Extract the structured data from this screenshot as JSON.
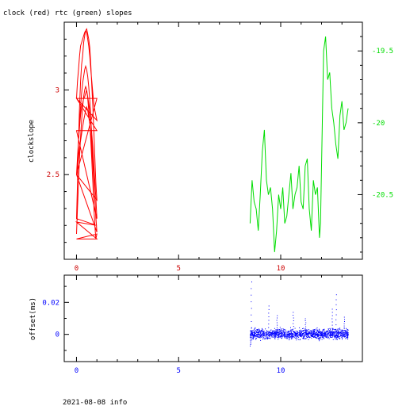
{
  "title": "clock (red) rtc (green) slopes",
  "footer": "2021-08-08 info",
  "colors": {
    "clock": "#ff0000",
    "rtc": "#00dd00",
    "offset": "#0000ff",
    "frame": "#000000"
  },
  "chart_data": [
    {
      "type": "line",
      "title": "clock (red) rtc (green) slopes",
      "xlabel": "",
      "ylabel": "clockslope",
      "xlim": [
        -0.6,
        14
      ],
      "xticks": [
        "0",
        "5",
        "10"
      ],
      "y_left": {
        "label": "clockslope",
        "color": "#cc0000",
        "lim": [
          2.0,
          3.4
        ],
        "ticks": [
          "2.5",
          "3"
        ]
      },
      "y_right": {
        "label": "",
        "color": "#00dd00",
        "lim": [
          -20.95,
          -19.3
        ],
        "ticks": [
          "-20.5",
          "-20",
          "-19.5"
        ]
      },
      "series": [
        {
          "axis": "left",
          "color": "#ff0000",
          "x": [
            0.0,
            0.05,
            0.1,
            0.15,
            0.2,
            0.25,
            0.3,
            0.35,
            0.4,
            0.45,
            0.5,
            0.55,
            0.6,
            0.65,
            0.7,
            0.75,
            0.8,
            0.85,
            0.9,
            0.95,
            1.0,
            0.0,
            1.0,
            0.0,
            1.0,
            0.0,
            0.05,
            0.1,
            0.15,
            0.2,
            0.25,
            0.3,
            0.35,
            0.4,
            0.45,
            0.5,
            0.55,
            0.6,
            0.65,
            0.7,
            0.75,
            0.8,
            0.85,
            0.9,
            0.95,
            1.0,
            0.0,
            0.05,
            0.1,
            0.15,
            0.2,
            0.25,
            0.3,
            0.35,
            0.4,
            0.45,
            0.5,
            0.55,
            0.6,
            0.65,
            0.7,
            0.75,
            0.8,
            0.85,
            0.9,
            0.95,
            1.0,
            0.0,
            1.0,
            0.0,
            0.05,
            0.1,
            0.15,
            0.2,
            0.25,
            0.3,
            0.35,
            0.4,
            0.45,
            0.5,
            0.55,
            0.6,
            0.65,
            0.7,
            0.75,
            0.8,
            0.85,
            0.9,
            0.95,
            1.0,
            0.0,
            1.0,
            0.0,
            0.05,
            0.1,
            0.15,
            0.2,
            0.25,
            0.3,
            0.35,
            0.4,
            0.45,
            0.5,
            0.55,
            0.6,
            0.65,
            0.7,
            0.75,
            0.8,
            0.85,
            0.9,
            0.95,
            1.0,
            0.0,
            0.05,
            0.1,
            0.15,
            0.2,
            0.25,
            0.3,
            0.35,
            0.4,
            0.45,
            0.5,
            0.55,
            0.6,
            0.65,
            0.7,
            0.75,
            0.8,
            0.85,
            0.9,
            0.95,
            1.0
          ],
          "y": [
            2.15,
            2.3,
            2.45,
            2.6,
            2.72,
            2.82,
            2.9,
            2.96,
            3.0,
            3.02,
            3.0,
            2.95,
            2.88,
            2.8,
            2.7,
            2.58,
            2.45,
            2.32,
            2.2,
            2.12,
            2.15,
            2.12,
            2.12,
            2.22,
            2.2,
            2.24,
            2.45,
            2.7,
            2.9,
            3.05,
            3.15,
            3.2,
            3.28,
            3.32,
            3.35,
            3.36,
            3.33,
            3.3,
            3.25,
            3.15,
            3.02,
            2.9,
            2.76,
            2.6,
            2.45,
            2.35,
            2.5,
            2.6,
            2.7,
            2.78,
            2.85,
            2.9,
            2.92,
            2.95,
            2.96,
            2.98,
            3.0,
            2.96,
            2.92,
            2.88,
            2.82,
            2.74,
            2.66,
            2.56,
            2.46,
            2.36,
            2.24,
            2.76,
            2.76,
            2.95,
            3.05,
            3.12,
            3.2,
            3.26,
            3.28,
            3.3,
            3.32,
            3.34,
            3.35,
            3.34,
            3.3,
            3.26,
            3.2,
            3.12,
            3.05,
            2.98,
            2.92,
            2.88,
            2.85,
            2.82,
            2.95,
            2.95,
            2.5,
            2.55,
            2.6,
            2.66,
            2.7,
            2.74,
            2.78,
            2.82,
            2.85,
            2.88,
            2.9,
            2.88,
            2.84,
            2.8,
            2.74,
            2.66,
            2.56,
            2.46,
            2.36,
            2.24,
            2.16,
            2.5,
            2.6,
            2.7,
            2.8,
            2.9,
            2.98,
            3.04,
            3.08,
            3.12,
            3.14,
            3.12,
            3.08,
            3.02,
            2.94,
            2.84,
            2.72,
            2.6,
            2.48,
            2.36,
            2.25,
            2.16
          ]
        },
        {
          "axis": "right",
          "color": "#00dd00",
          "x": [
            8.5,
            8.6,
            8.7,
            8.8,
            8.9,
            9.0,
            9.1,
            9.2,
            9.3,
            9.4,
            9.5,
            9.6,
            9.7,
            9.8,
            9.9,
            10.0,
            10.1,
            10.2,
            10.3,
            10.4,
            10.5,
            10.6,
            10.7,
            10.8,
            10.9,
            11.0,
            11.1,
            11.2,
            11.3,
            11.4,
            11.5,
            11.6,
            11.7,
            11.8,
            11.9,
            11.95,
            12.0,
            12.1,
            12.2,
            12.3,
            12.4,
            12.5,
            12.6,
            12.7,
            12.8,
            12.9,
            13.0,
            13.1,
            13.2,
            13.3
          ],
          "y": [
            -20.7,
            -20.4,
            -20.55,
            -20.6,
            -20.75,
            -20.5,
            -20.2,
            -20.05,
            -20.4,
            -20.5,
            -20.45,
            -20.6,
            -20.9,
            -20.75,
            -20.5,
            -20.6,
            -20.45,
            -20.7,
            -20.65,
            -20.5,
            -20.35,
            -20.6,
            -20.5,
            -20.45,
            -20.3,
            -20.55,
            -20.6,
            -20.3,
            -20.25,
            -20.6,
            -20.75,
            -20.4,
            -20.5,
            -20.45,
            -20.8,
            -20.7,
            -20.3,
            -19.5,
            -19.4,
            -19.7,
            -19.65,
            -19.9,
            -20.0,
            -20.15,
            -20.25,
            -19.95,
            -19.85,
            -20.05,
            -20.0,
            -19.9
          ]
        }
      ]
    },
    {
      "type": "scatter",
      "title": "",
      "xlabel": "",
      "ylabel": "offset(ms)",
      "xlim": [
        -0.6,
        14
      ],
      "ylim": [
        -0.017,
        0.037
      ],
      "xticks": [
        "0",
        "5",
        "10"
      ],
      "yticks": [
        "0",
        "0.02"
      ],
      "color": "#0000ff",
      "x_range": [
        8.5,
        13.3
      ],
      "band": [
        -0.004,
        0.005
      ],
      "spikes": [
        {
          "x": 8.55,
          "y": 0.033
        },
        {
          "x": 8.5,
          "y": -0.007
        },
        {
          "x": 9.4,
          "y": 0.018
        },
        {
          "x": 9.8,
          "y": 0.012
        },
        {
          "x": 10.6,
          "y": 0.014
        },
        {
          "x": 11.2,
          "y": 0.01
        },
        {
          "x": 12.5,
          "y": 0.016
        },
        {
          "x": 12.7,
          "y": 0.025
        },
        {
          "x": 13.1,
          "y": 0.011
        }
      ]
    }
  ]
}
